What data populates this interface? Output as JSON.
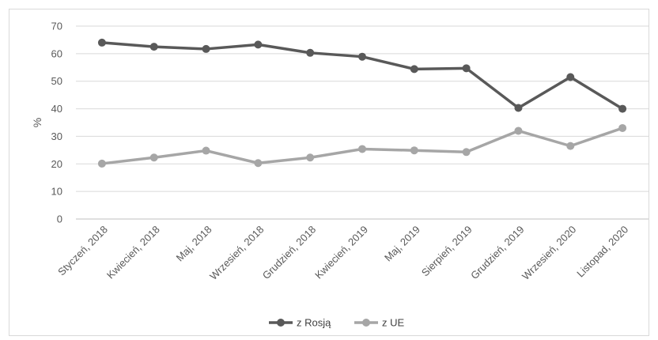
{
  "chart_data": {
    "type": "line",
    "title": "",
    "xlabel": "",
    "ylabel": "%",
    "ylim": [
      0,
      70
    ],
    "yticks": [
      0,
      10,
      20,
      30,
      40,
      50,
      60,
      70
    ],
    "grid": true,
    "legend_position": "bottom",
    "categories": [
      "Styczeń, 2018",
      "Kwiecień, 2018",
      "Maj, 2018",
      "Wrzesień, 2018",
      "Grudzień, 2018",
      "Kwiecień, 2019",
      "Maj, 2019",
      "Sierpień, 2019",
      "Grudzień, 2019",
      "Wrzesień, 2020",
      "Listopad, 2020"
    ],
    "series": [
      {
        "name": "z Rosją",
        "color": "#595959",
        "values": [
          64,
          62.5,
          61.7,
          63.3,
          60.3,
          58.9,
          54.4,
          54.7,
          40.3,
          51.5,
          40
        ]
      },
      {
        "name": "z UE",
        "color": "#a6a6a6",
        "values": [
          20.1,
          22.3,
          24.8,
          20.3,
          22.3,
          25.4,
          24.9,
          24.3,
          32,
          26.5,
          33
        ]
      }
    ]
  }
}
